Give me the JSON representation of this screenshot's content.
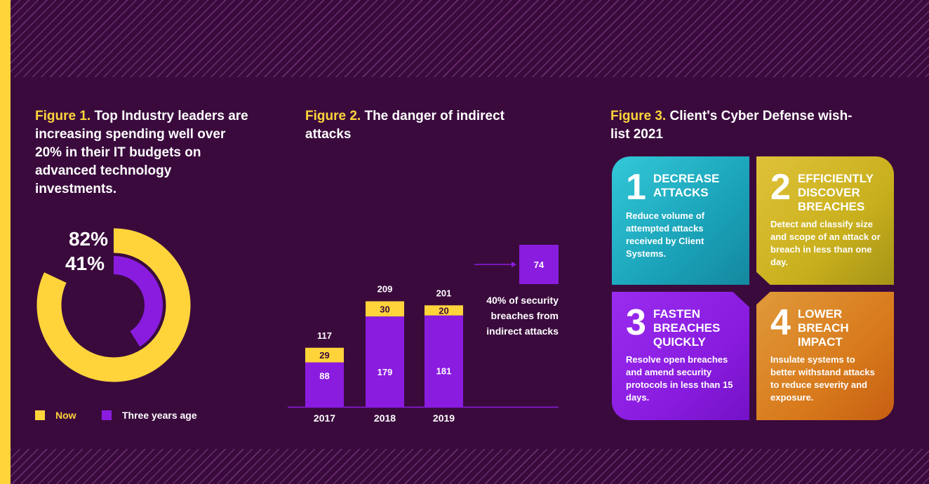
{
  "figure1": {
    "label": "Figure 1.",
    "title": "Top Industry leaders are increasing spending well over 20% in their IT budgets on advanced technology investments.",
    "legend": [
      {
        "label": "Now",
        "color": "#ffd43b"
      },
      {
        "label": "Three years age",
        "color": "#8a1ce0"
      }
    ]
  },
  "figure2": {
    "label": "Figure 2.",
    "title": "The danger of indirect attacks",
    "note": "40% of security breaches from indirect attacks"
  },
  "figure3": {
    "label": "Figure 3.",
    "title": "Client's Cyber Defense wish-list 2021",
    "cards": [
      {
        "number": "1",
        "title": "DECREASE ATTACKS",
        "description": "Reduce volume of attempted attacks received by Client Systems."
      },
      {
        "number": "2",
        "title": "EFFICIENTLY DISCOVER BREACHES",
        "description": "Detect and classify size and scope of an attack or breach in less than one day."
      },
      {
        "number": "3",
        "title": "FASTEN BREACHES QUICKLY",
        "description": "Resolve open breaches and amend security protocols in less than 15 days."
      },
      {
        "number": "4",
        "title": "LOWER BREACH IMPACT",
        "description": "Insulate systems to better withstand attacks to reduce severity and exposure."
      }
    ]
  },
  "chart_data": [
    {
      "type": "pie",
      "variant": "donut",
      "series": [
        {
          "name": "Now",
          "value": 82,
          "display": "82%",
          "color": "#ffd43b"
        },
        {
          "name": "Three years age",
          "value": 41,
          "display": "41%",
          "color": "#8a1ce0"
        }
      ],
      "legend": "bottom"
    },
    {
      "type": "bar",
      "stacked": true,
      "categories": [
        "2017",
        "2018",
        "2019"
      ],
      "series": [
        {
          "values": [
            88,
            179,
            181
          ],
          "color": "#8a1ce0"
        },
        {
          "values": [
            29,
            30,
            20
          ],
          "color": "#ffd43b"
        }
      ],
      "totals": [
        117,
        209,
        201
      ],
      "callout": {
        "value": 74,
        "color": "#8a1ce0"
      },
      "ylim": [
        0,
        235
      ],
      "grid": false
    }
  ]
}
